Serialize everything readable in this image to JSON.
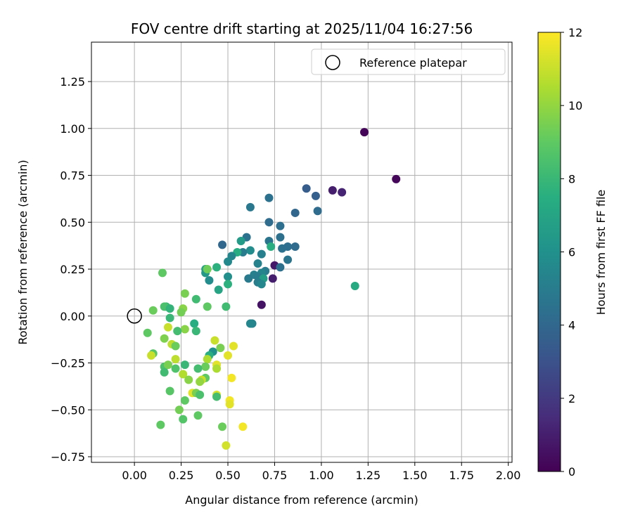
{
  "chart_data": {
    "type": "scatter",
    "title": "FOV centre drift starting at 2025/11/04 16:27:56",
    "xlabel": "Angular distance from reference (arcmin)",
    "ylabel": "Rotation from reference (arcmin)",
    "xlim": [
      -0.23,
      2.02
    ],
    "ylim": [
      -0.78,
      1.46
    ],
    "xticks": [
      0.0,
      0.25,
      0.5,
      0.75,
      1.0,
      1.25,
      1.5,
      1.75,
      2.0
    ],
    "xtick_labels": [
      "0.00",
      "0.25",
      "0.50",
      "0.75",
      "1.00",
      "1.25",
      "1.50",
      "1.75",
      "2.00"
    ],
    "yticks": [
      -0.75,
      -0.5,
      -0.25,
      0.0,
      0.25,
      0.5,
      0.75,
      1.0,
      1.25
    ],
    "ytick_labels": [
      "−0.75",
      "−0.50",
      "−0.25",
      "0.00",
      "0.25",
      "0.50",
      "0.75",
      "1.00",
      "1.25"
    ],
    "grid": true,
    "legend": {
      "location": "top-right",
      "entries": [
        "Reference platepar"
      ]
    },
    "reference_point": {
      "x": 0.0,
      "y": 0.0,
      "label": "Reference platepar"
    },
    "colorbar": {
      "label": "Hours from first FF file",
      "colormap": "viridis",
      "range": [
        0,
        12
      ],
      "ticks": [
        0,
        2,
        4,
        6,
        8,
        10,
        12
      ],
      "tick_labels": [
        "0",
        "2",
        "4",
        "6",
        "8",
        "10",
        "12"
      ]
    },
    "series": [
      {
        "name": "FOV centre",
        "points": [
          {
            "x": 1.23,
            "y": 0.98,
            "h": 0.1
          },
          {
            "x": 1.4,
            "y": 0.73,
            "h": 0.2
          },
          {
            "x": 1.06,
            "y": 0.67,
            "h": 1.0
          },
          {
            "x": 1.11,
            "y": 0.66,
            "h": 1.2
          },
          {
            "x": 0.75,
            "y": 0.27,
            "h": 0.8
          },
          {
            "x": 0.74,
            "y": 0.2,
            "h": 1.0
          },
          {
            "x": 0.68,
            "y": 0.06,
            "h": 0.6
          },
          {
            "x": 0.92,
            "y": 0.68,
            "h": 3.5
          },
          {
            "x": 0.97,
            "y": 0.64,
            "h": 3.6
          },
          {
            "x": 0.72,
            "y": 0.63,
            "h": 4.5
          },
          {
            "x": 0.62,
            "y": 0.58,
            "h": 4.8
          },
          {
            "x": 0.86,
            "y": 0.55,
            "h": 4.0
          },
          {
            "x": 0.98,
            "y": 0.56,
            "h": 4.2
          },
          {
            "x": 0.72,
            "y": 0.5,
            "h": 4.2
          },
          {
            "x": 0.78,
            "y": 0.48,
            "h": 4.3
          },
          {
            "x": 0.6,
            "y": 0.42,
            "h": 4.5
          },
          {
            "x": 0.78,
            "y": 0.42,
            "h": 4.4
          },
          {
            "x": 0.72,
            "y": 0.4,
            "h": 4.6
          },
          {
            "x": 0.57,
            "y": 0.4,
            "h": 6.5
          },
          {
            "x": 0.47,
            "y": 0.38,
            "h": 4.0
          },
          {
            "x": 0.79,
            "y": 0.36,
            "h": 4.5
          },
          {
            "x": 0.82,
            "y": 0.37,
            "h": 4.3
          },
          {
            "x": 0.86,
            "y": 0.37,
            "h": 4.2
          },
          {
            "x": 0.73,
            "y": 0.37,
            "h": 7.5
          },
          {
            "x": 0.62,
            "y": 0.35,
            "h": 5.8
          },
          {
            "x": 0.58,
            "y": 0.34,
            "h": 5.0
          },
          {
            "x": 0.55,
            "y": 0.34,
            "h": 7.4
          },
          {
            "x": 0.52,
            "y": 0.32,
            "h": 5.4
          },
          {
            "x": 0.68,
            "y": 0.33,
            "h": 5.2
          },
          {
            "x": 0.5,
            "y": 0.29,
            "h": 5.6
          },
          {
            "x": 0.66,
            "y": 0.28,
            "h": 5.3
          },
          {
            "x": 0.82,
            "y": 0.3,
            "h": 4.6
          },
          {
            "x": 0.78,
            "y": 0.26,
            "h": 4.4
          },
          {
            "x": 0.7,
            "y": 0.24,
            "h": 5.0
          },
          {
            "x": 0.68,
            "y": 0.23,
            "h": 5.4
          },
          {
            "x": 0.64,
            "y": 0.22,
            "h": 5.2
          },
          {
            "x": 0.66,
            "y": 0.21,
            "h": 5.0
          },
          {
            "x": 0.61,
            "y": 0.2,
            "h": 4.9
          },
          {
            "x": 0.69,
            "y": 0.2,
            "h": 6.6
          },
          {
            "x": 0.66,
            "y": 0.18,
            "h": 5.1
          },
          {
            "x": 0.68,
            "y": 0.17,
            "h": 5.5
          },
          {
            "x": 0.5,
            "y": 0.21,
            "h": 5.9
          },
          {
            "x": 0.5,
            "y": 0.17,
            "h": 7.6
          },
          {
            "x": 0.44,
            "y": 0.26,
            "h": 7.6
          },
          {
            "x": 0.38,
            "y": 0.25,
            "h": 7.0
          },
          {
            "x": 0.38,
            "y": 0.23,
            "h": 6.4
          },
          {
            "x": 0.39,
            "y": 0.25,
            "h": 9.3
          },
          {
            "x": 0.4,
            "y": 0.19,
            "h": 5.8
          },
          {
            "x": 0.45,
            "y": 0.14,
            "h": 7.0
          },
          {
            "x": 1.18,
            "y": 0.16,
            "h": 7.3
          },
          {
            "x": 0.15,
            "y": 0.23,
            "h": 9.0
          },
          {
            "x": 0.33,
            "y": 0.09,
            "h": 8.2
          },
          {
            "x": 0.27,
            "y": 0.12,
            "h": 9.5
          },
          {
            "x": 0.17,
            "y": 0.05,
            "h": 8.0
          },
          {
            "x": 0.16,
            "y": 0.05,
            "h": 8.5
          },
          {
            "x": 0.19,
            "y": 0.04,
            "h": 7.8
          },
          {
            "x": 0.1,
            "y": 0.03,
            "h": 9.2
          },
          {
            "x": 0.26,
            "y": 0.04,
            "h": 9.8
          },
          {
            "x": 0.25,
            "y": 0.02,
            "h": 9.4
          },
          {
            "x": 0.39,
            "y": 0.05,
            "h": 9.0
          },
          {
            "x": 0.49,
            "y": 0.05,
            "h": 8.2
          },
          {
            "x": 0.19,
            "y": -0.01,
            "h": 8.0
          },
          {
            "x": 0.63,
            "y": -0.04,
            "h": 5.3
          },
          {
            "x": 0.62,
            "y": -0.04,
            "h": 5.5
          },
          {
            "x": 0.32,
            "y": -0.04,
            "h": 7.4
          },
          {
            "x": 0.07,
            "y": -0.09,
            "h": 9.0
          },
          {
            "x": 0.18,
            "y": -0.06,
            "h": 11.0
          },
          {
            "x": 0.27,
            "y": -0.07,
            "h": 9.8
          },
          {
            "x": 0.23,
            "y": -0.08,
            "h": 8.3
          },
          {
            "x": 0.33,
            "y": -0.08,
            "h": 8.0
          },
          {
            "x": 0.16,
            "y": -0.12,
            "h": 9.6
          },
          {
            "x": 0.2,
            "y": -0.15,
            "h": 10.8
          },
          {
            "x": 0.22,
            "y": -0.16,
            "h": 9.2
          },
          {
            "x": 0.43,
            "y": -0.13,
            "h": 11.0
          },
          {
            "x": 0.53,
            "y": -0.16,
            "h": 11.5
          },
          {
            "x": 0.46,
            "y": -0.17,
            "h": 9.5
          },
          {
            "x": 0.1,
            "y": -0.2,
            "h": 8.8
          },
          {
            "x": 0.09,
            "y": -0.21,
            "h": 11.0
          },
          {
            "x": 0.42,
            "y": -0.19,
            "h": 6.0
          },
          {
            "x": 0.4,
            "y": -0.21,
            "h": 7.5
          },
          {
            "x": 0.39,
            "y": -0.23,
            "h": 10.5
          },
          {
            "x": 0.22,
            "y": -0.23,
            "h": 10.8
          },
          {
            "x": 0.5,
            "y": -0.21,
            "h": 11.5
          },
          {
            "x": 0.16,
            "y": -0.27,
            "h": 8.5
          },
          {
            "x": 0.18,
            "y": -0.26,
            "h": 9.5
          },
          {
            "x": 0.27,
            "y": -0.26,
            "h": 8.0
          },
          {
            "x": 0.38,
            "y": -0.27,
            "h": 9.2
          },
          {
            "x": 0.44,
            "y": -0.26,
            "h": 11.5
          },
          {
            "x": 0.44,
            "y": -0.28,
            "h": 10.5
          },
          {
            "x": 0.34,
            "y": -0.28,
            "h": 8.3
          },
          {
            "x": 0.22,
            "y": -0.28,
            "h": 8.6
          },
          {
            "x": 0.16,
            "y": -0.3,
            "h": 8.2
          },
          {
            "x": 0.26,
            "y": -0.31,
            "h": 10.6
          },
          {
            "x": 0.38,
            "y": -0.33,
            "h": 9.0
          },
          {
            "x": 0.52,
            "y": -0.33,
            "h": 11.8
          },
          {
            "x": 0.29,
            "y": -0.34,
            "h": 9.8
          },
          {
            "x": 0.36,
            "y": -0.34,
            "h": 11.0
          },
          {
            "x": 0.35,
            "y": -0.35,
            "h": 10.0
          },
          {
            "x": 0.19,
            "y": -0.4,
            "h": 8.8
          },
          {
            "x": 0.31,
            "y": -0.41,
            "h": 11.5
          },
          {
            "x": 0.33,
            "y": -0.41,
            "h": 9.5
          },
          {
            "x": 0.35,
            "y": -0.42,
            "h": 8.5
          },
          {
            "x": 0.44,
            "y": -0.42,
            "h": 11.3
          },
          {
            "x": 0.44,
            "y": -0.43,
            "h": 8.3
          },
          {
            "x": 0.51,
            "y": -0.45,
            "h": 11.8
          },
          {
            "x": 0.27,
            "y": -0.45,
            "h": 9.0
          },
          {
            "x": 0.51,
            "y": -0.47,
            "h": 11.5
          },
          {
            "x": 0.24,
            "y": -0.5,
            "h": 9.4
          },
          {
            "x": 0.34,
            "y": -0.53,
            "h": 9.0
          },
          {
            "x": 0.26,
            "y": -0.55,
            "h": 8.7
          },
          {
            "x": 0.14,
            "y": -0.58,
            "h": 9.0
          },
          {
            "x": 0.47,
            "y": -0.59,
            "h": 9.2
          },
          {
            "x": 0.58,
            "y": -0.59,
            "h": 11.8
          },
          {
            "x": 0.49,
            "y": -0.69,
            "h": 11.2
          }
        ]
      }
    ]
  }
}
